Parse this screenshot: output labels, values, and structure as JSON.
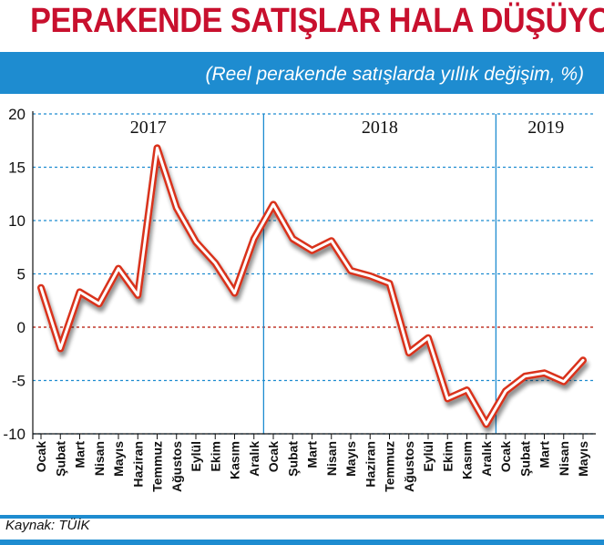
{
  "header": {
    "title": "PERAKENDE SATIŞLAR HALA DÜŞÜYOR",
    "subtitle": "(Reel perakende satışlarda yıllık değişim, %)"
  },
  "footer": {
    "source": "Kaynak: TÜİK"
  },
  "colors": {
    "accent": "#1e8cd0",
    "title": "#c8102e",
    "line": "#d9331a",
    "zero_line": "#c0392b",
    "grid": "#1e8cd0"
  },
  "chart_data": {
    "type": "line",
    "title": "",
    "xlabel": "",
    "ylabel": "",
    "ylim": [
      -10,
      20
    ],
    "yticks": [
      20,
      15,
      10,
      5,
      0,
      -5,
      -10
    ],
    "grid": true,
    "years": [
      {
        "label": "2017",
        "start_index": 0
      },
      {
        "label": "2018",
        "start_index": 12
      },
      {
        "label": "2019",
        "start_index": 24
      }
    ],
    "categories": [
      "Ocak",
      "Şubat",
      "Mart",
      "Nisan",
      "Mayıs",
      "Haziran",
      "Temmuz",
      "Ağustos",
      "Eylül",
      "Ekim",
      "Kasım",
      "Aralık",
      "Ocak",
      "Şubat",
      "Mart",
      "Nisan",
      "Mayıs",
      "Haziran",
      "Temmuz",
      "Ağustos",
      "Eylül",
      "Ekim",
      "Kasım",
      "Aralık",
      "Ocak",
      "Şubat",
      "Mart",
      "Nisan",
      "Mayıs"
    ],
    "series": [
      {
        "values": [
          3.7,
          -2.0,
          3.3,
          2.2,
          5.5,
          3.0,
          16.8,
          11.2,
          8.0,
          6.0,
          3.2,
          8.3,
          11.5,
          8.3,
          7.2,
          8.1,
          5.3,
          4.8,
          4.1,
          -2.4,
          -1.0,
          -6.7,
          -5.9,
          -9.1,
          -6.0,
          -4.6,
          -4.3,
          -5.1,
          -3.1
        ]
      }
    ]
  }
}
